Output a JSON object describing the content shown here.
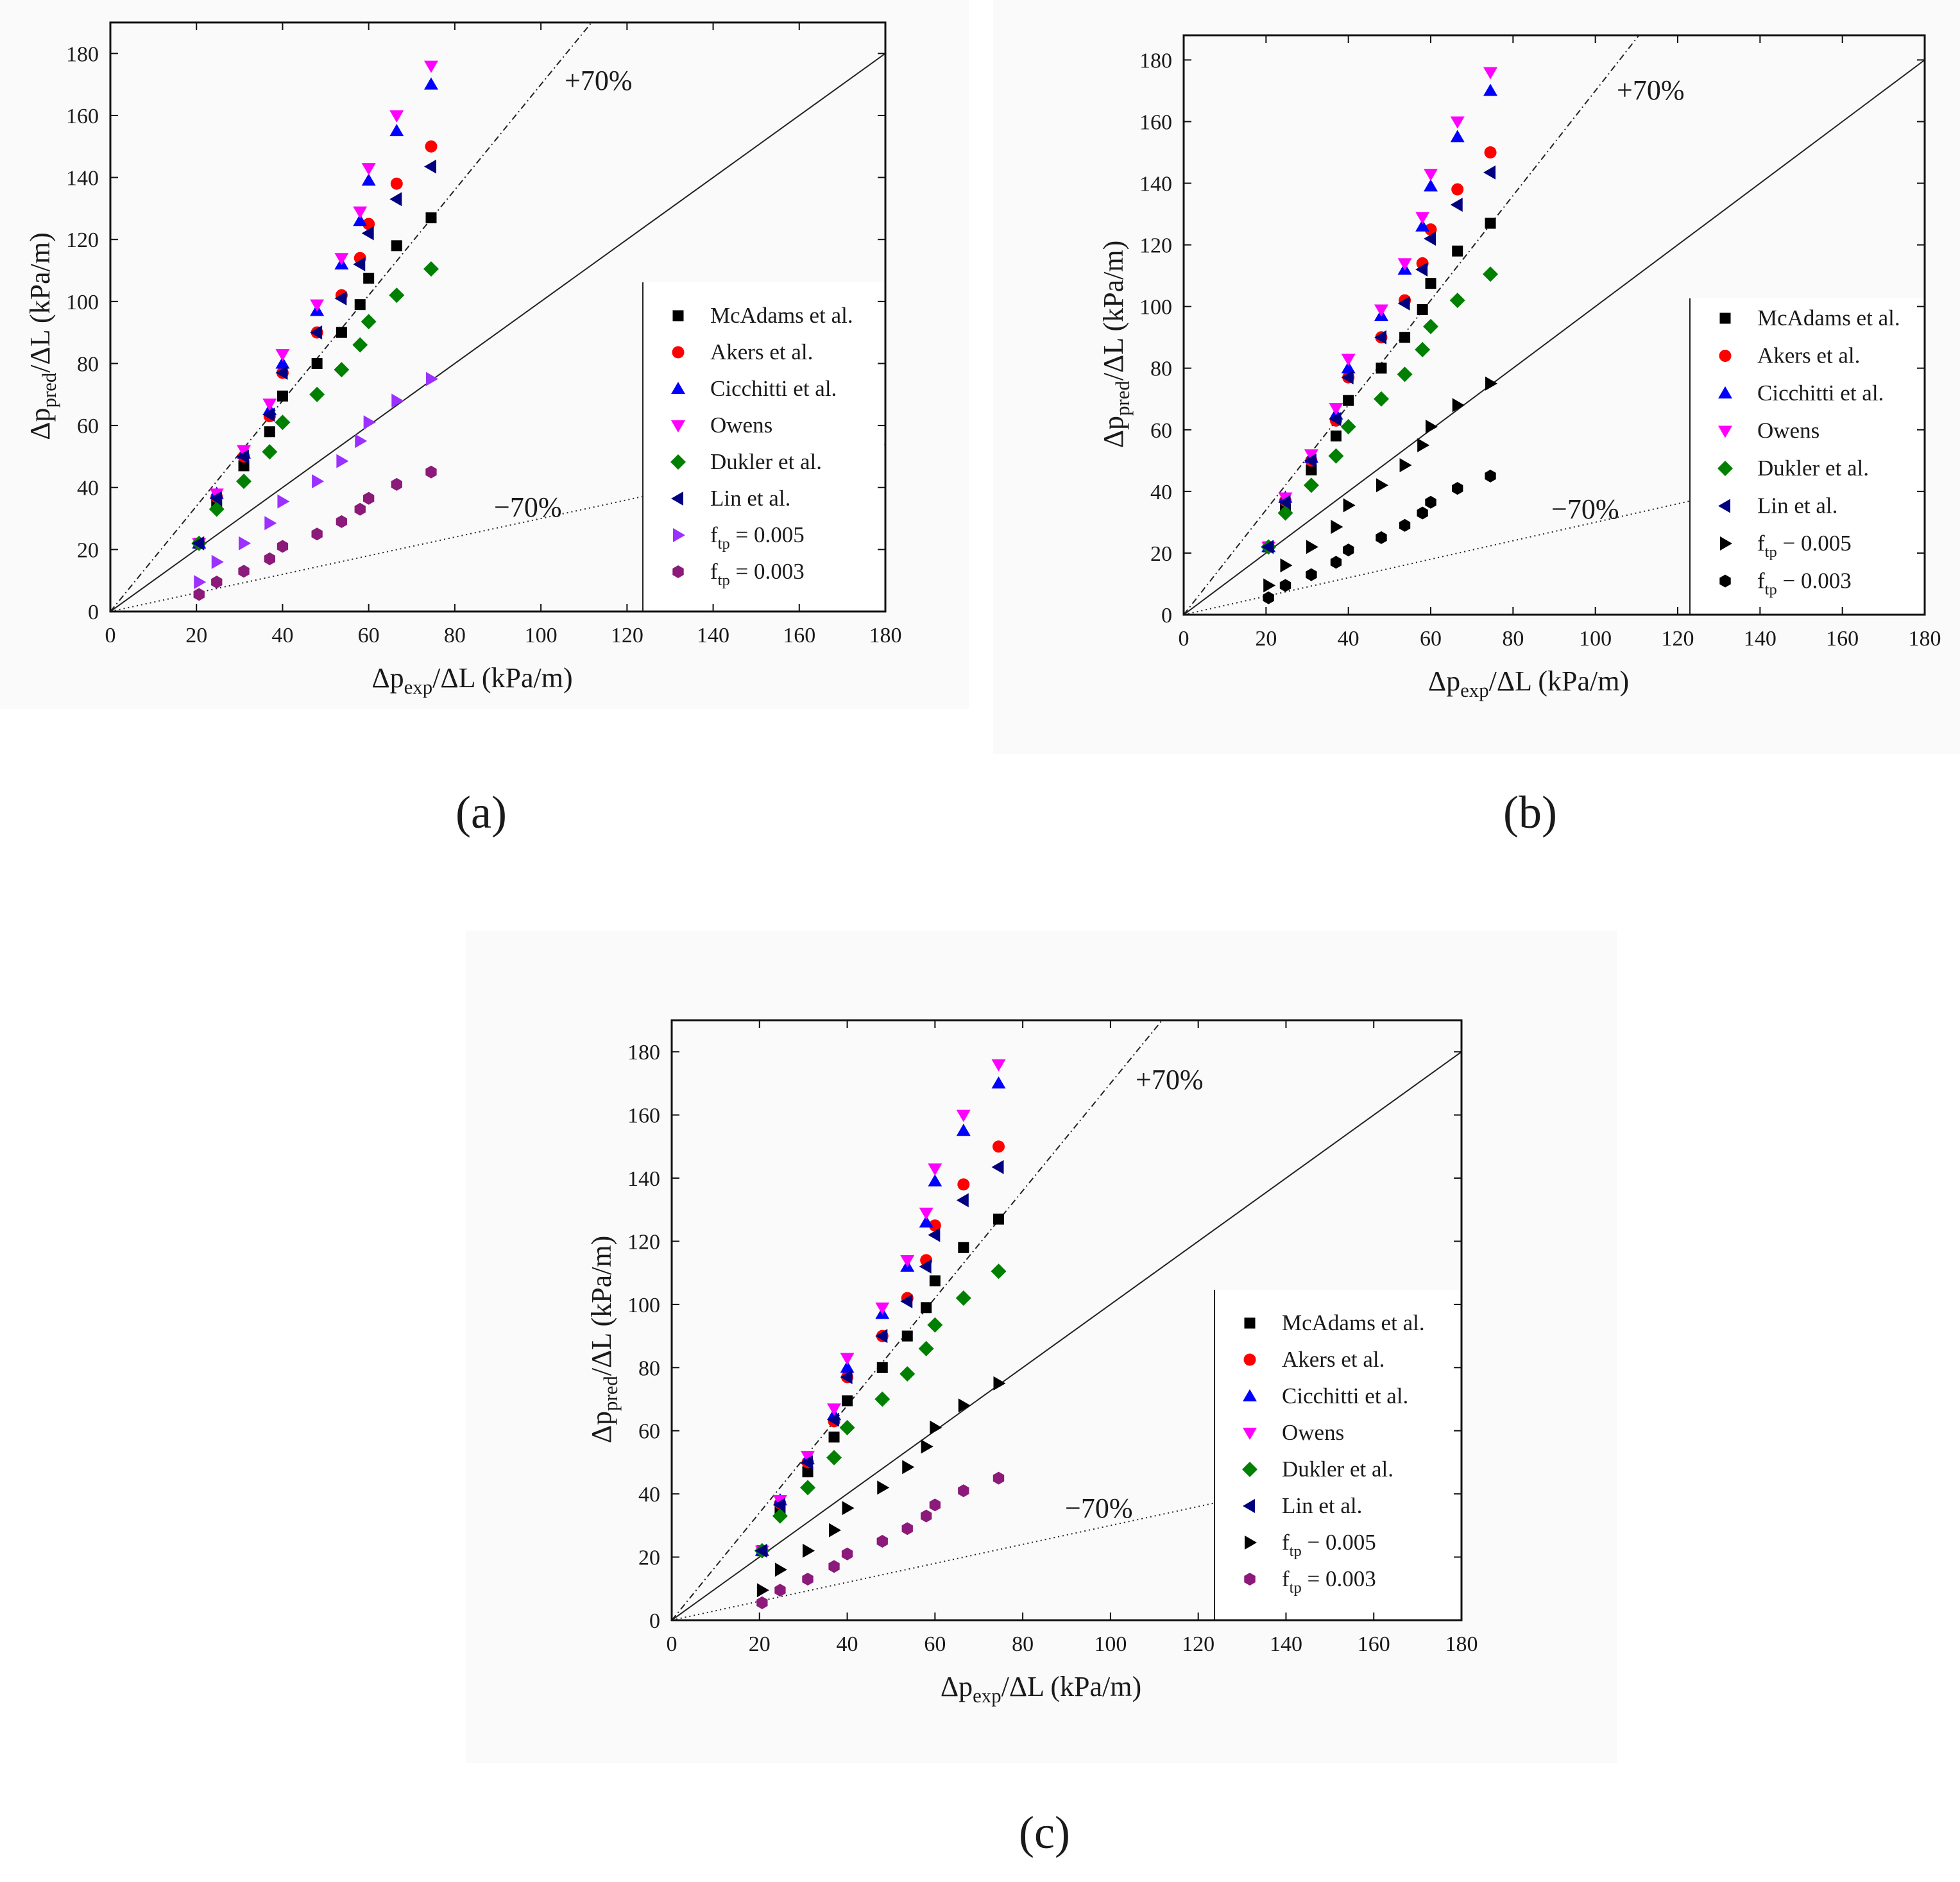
{
  "figure": {
    "panel_labels": [
      "(a)",
      "(b)",
      "(c)"
    ]
  },
  "colors": {
    "McAdams et al.": "#000000",
    "Akers et al.": "#ff0000",
    "Cicchitti et al.": "#0000ff",
    "Owens": "#ff00ff",
    "Dukler et al.": "#008000",
    "Lin et al.": "#000080",
    "ftp = 0.005": "#9b30ff",
    "ftp = 0.003": "#8b1a7a"
  },
  "chart_data": [
    {
      "panel": "(a)",
      "type": "scatter",
      "title": "",
      "xlabel": {
        "prefix": "Δp",
        "sub": "exp",
        "suffix": "/ΔL (kPa/m)"
      },
      "ylabel": {
        "prefix": "Δp",
        "sub": "pred",
        "suffix": "/ΔL (kPa/m)"
      },
      "xlim": [
        0,
        180
      ],
      "ylim": [
        0,
        190
      ],
      "xticks": [
        0,
        20,
        40,
        60,
        80,
        100,
        120,
        140,
        160,
        180
      ],
      "yticks": [
        0,
        20,
        40,
        60,
        80,
        100,
        120,
        140,
        160,
        180
      ],
      "grid": false,
      "reference_lines": [
        {
          "label": "",
          "slope": 1.0,
          "style": "solid"
        },
        {
          "label": "+70%",
          "slope": 1.7,
          "style": "dashdot"
        },
        {
          "label": "−70%",
          "slope": 0.3,
          "style": "dotted"
        }
      ],
      "legend_position": "right",
      "x": [
        20.6,
        24.7,
        31,
        37,
        40,
        48,
        53.7,
        58,
        60,
        66.5,
        74.5
      ],
      "series": [
        {
          "name": "McAdams et al.",
          "marker": "square",
          "values": [
            22,
            35,
            47,
            58,
            69.5,
            80,
            90,
            99,
            107.5,
            118,
            127
          ]
        },
        {
          "name": "Akers et al.",
          "marker": "circle",
          "values": [
            22,
            37,
            50,
            63,
            77,
            90,
            102,
            114,
            125,
            138,
            150
          ]
        },
        {
          "name": "Cicchitti et al.",
          "marker": "triangle-up",
          "values": [
            22,
            38,
            51,
            65,
            80,
            97,
            112,
            126,
            139,
            155,
            170
          ]
        },
        {
          "name": "Owens",
          "marker": "triangle-down",
          "values": [
            22,
            38,
            52,
            67,
            83,
            99,
            114,
            129,
            143,
            160,
            176
          ]
        },
        {
          "name": "Dukler et al.",
          "marker": "diamond",
          "values": [
            22,
            33,
            42,
            51.5,
            61,
            70,
            78,
            86,
            93.5,
            102,
            110.5
          ]
        },
        {
          "name": "Lin et al.",
          "marker": "triangle-left",
          "values": [
            22,
            36.5,
            50,
            63.5,
            77,
            90,
            101,
            112,
            122,
            133,
            143.5
          ]
        },
        {
          "name": "ftp = 0.005",
          "display_name": {
            "prefix": "f",
            "sub": "tp",
            "suffix": " = 0.005"
          },
          "marker": "triangle-right",
          "values": [
            9.5,
            16,
            22,
            28.5,
            35.5,
            42,
            48.5,
            55,
            61,
            68,
            75
          ]
        },
        {
          "name": "ftp = 0.003",
          "display_name": {
            "prefix": "f",
            "sub": "tp",
            "suffix": " = 0.003"
          },
          "marker": "hexagon",
          "values": [
            5.5,
            9.5,
            13,
            17,
            21,
            25,
            29,
            33,
            36.5,
            41,
            45
          ]
        }
      ]
    },
    {
      "panel": "(b)",
      "type": "scatter",
      "title": "",
      "xlabel": {
        "prefix": "Δp",
        "sub": "exp",
        "suffix": "/ΔL (kPa/m)"
      },
      "ylabel": {
        "prefix": "Δp",
        "sub": "pred",
        "suffix": "/ΔL (kPa/m)"
      },
      "xlim": [
        0,
        180
      ],
      "ylim": [
        0,
        188
      ],
      "xticks": [
        0,
        20,
        40,
        60,
        80,
        100,
        120,
        140,
        160,
        180
      ],
      "yticks": [
        0,
        20,
        40,
        60,
        80,
        100,
        120,
        140,
        160,
        180
      ],
      "grid": false,
      "reference_lines": [
        {
          "label": "",
          "slope": 1.0,
          "style": "solid"
        },
        {
          "label": "+70%",
          "slope": 1.7,
          "style": "dashdot"
        },
        {
          "label": "−70%",
          "slope": 0.3,
          "style": "dotted"
        }
      ],
      "legend_position": "right",
      "x": [
        20.6,
        24.7,
        31,
        37,
        40,
        48,
        53.7,
        58,
        60,
        66.5,
        74.5
      ],
      "series": [
        {
          "name": "McAdams et al.",
          "marker": "square",
          "values": [
            22,
            35,
            47,
            58,
            69.5,
            80,
            90,
            99,
            107.5,
            118,
            127
          ]
        },
        {
          "name": "Akers et al.",
          "marker": "circle",
          "values": [
            22,
            37,
            50,
            63,
            77,
            90,
            102,
            114,
            125,
            138,
            150
          ]
        },
        {
          "name": "Cicchitti et al.",
          "marker": "triangle-up",
          "values": [
            22,
            38,
            51,
            65,
            80,
            97,
            112,
            126,
            139,
            155,
            170
          ]
        },
        {
          "name": "Owens",
          "marker": "triangle-down",
          "values": [
            22,
            38,
            52,
            67,
            83,
            99,
            114,
            129,
            143,
            160,
            176
          ]
        },
        {
          "name": "Dukler et al.",
          "marker": "diamond",
          "values": [
            22,
            33,
            42,
            51.5,
            61,
            70,
            78,
            86,
            93.5,
            102,
            110.5
          ]
        },
        {
          "name": "Lin et al.",
          "marker": "triangle-left",
          "values": [
            22,
            36.5,
            50,
            63.5,
            77,
            90,
            101,
            112,
            122,
            133,
            143.5
          ]
        },
        {
          "name": "ftp − 0.005",
          "display_name": {
            "prefix": "f",
            "sub": "tp",
            "suffix": " − 0.005"
          },
          "marker": "triangle-right",
          "values": [
            9.5,
            16,
            22,
            28.5,
            35.5,
            42,
            48.5,
            55,
            61,
            68,
            75
          ]
        },
        {
          "name": "ftp − 0.003",
          "display_name": {
            "prefix": "f",
            "sub": "tp",
            "suffix": " − 0.003"
          },
          "marker": "hexagon",
          "values": [
            5.5,
            9.5,
            13,
            17,
            21,
            25,
            29,
            33,
            36.5,
            41,
            45
          ]
        }
      ]
    },
    {
      "panel": "(c)",
      "type": "scatter",
      "title": "",
      "xlabel": {
        "prefix": "Δp",
        "sub": "exp",
        "suffix": "/ΔL (kPa/m)"
      },
      "ylabel": {
        "prefix": "Δp",
        "sub": "pred",
        "suffix": "/ΔL (kPa/m)"
      },
      "xlim": [
        0,
        180
      ],
      "ylim": [
        0,
        190
      ],
      "xticks": [
        0,
        20,
        40,
        60,
        80,
        100,
        120,
        140,
        160,
        180
      ],
      "yticks": [
        0,
        20,
        40,
        60,
        80,
        100,
        120,
        140,
        160,
        180
      ],
      "grid": false,
      "reference_lines": [
        {
          "label": "",
          "slope": 1.0,
          "style": "solid"
        },
        {
          "label": "+70%",
          "slope": 1.7,
          "style": "dashdot"
        },
        {
          "label": "−70%",
          "slope": 0.3,
          "style": "dotted"
        }
      ],
      "legend_position": "right",
      "x": [
        20.6,
        24.7,
        31,
        37,
        40,
        48,
        53.7,
        58,
        60,
        66.5,
        74.5
      ],
      "series": [
        {
          "name": "McAdams et al.",
          "marker": "square",
          "values": [
            22,
            35,
            47,
            58,
            69.5,
            80,
            90,
            99,
            107.5,
            118,
            127
          ]
        },
        {
          "name": "Akers et al.",
          "marker": "circle",
          "values": [
            22,
            37,
            50,
            63,
            77,
            90,
            102,
            114,
            125,
            138,
            150
          ]
        },
        {
          "name": "Cicchitti et al.",
          "marker": "triangle-up",
          "values": [
            22,
            38,
            51,
            65,
            80,
            97,
            112,
            126,
            139,
            155,
            170
          ]
        },
        {
          "name": "Owens",
          "marker": "triangle-down",
          "values": [
            22,
            38,
            52,
            67,
            83,
            99,
            114,
            129,
            143,
            160,
            176
          ]
        },
        {
          "name": "Dukler et al.",
          "marker": "diamond",
          "values": [
            22,
            33,
            42,
            51.5,
            61,
            70,
            78,
            86,
            93.5,
            102,
            110.5
          ]
        },
        {
          "name": "Lin et al.",
          "marker": "triangle-left",
          "values": [
            22,
            36.5,
            50,
            63.5,
            77,
            90,
            101,
            112,
            122,
            133,
            143.5
          ]
        },
        {
          "name": "ftp − 0.005",
          "display_name": {
            "prefix": "f",
            "sub": "tp",
            "suffix": " − 0.005"
          },
          "marker": "triangle-right",
          "values": [
            9.5,
            16,
            22,
            28.5,
            35.5,
            42,
            48.5,
            55,
            61,
            68,
            75
          ]
        },
        {
          "name": "ftp = 0.003",
          "display_name": {
            "prefix": "f",
            "sub": "tp",
            "suffix": " = 0.003"
          },
          "marker": "hexagon",
          "values": [
            5.5,
            9.5,
            13,
            17,
            21,
            25,
            29,
            33,
            36.5,
            41,
            45
          ]
        }
      ]
    }
  ]
}
